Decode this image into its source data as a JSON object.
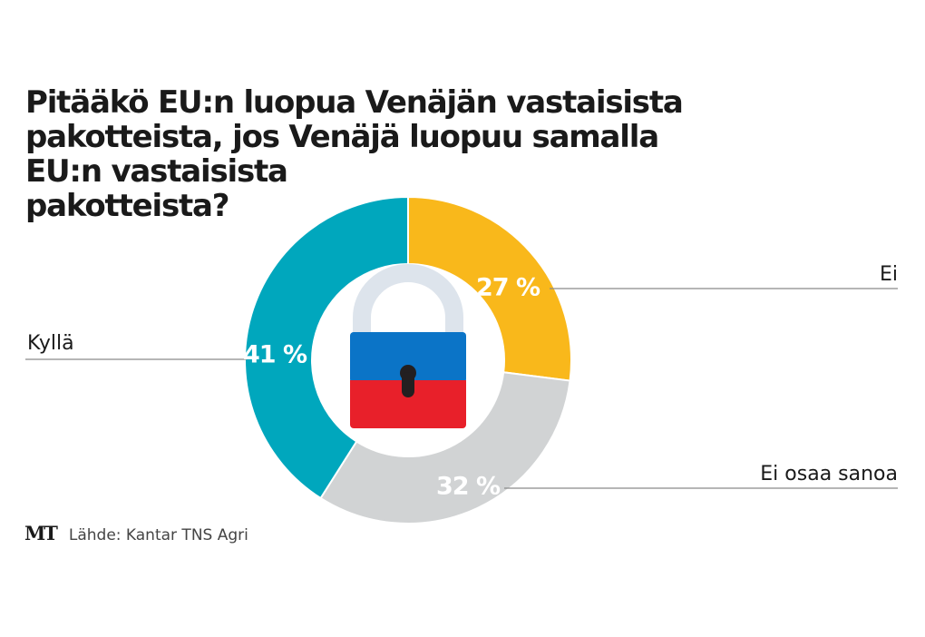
{
  "chart_data": {
    "type": "pie",
    "variant": "donut",
    "title": "Pitääkö EU:n luopua Venäjän vastaisista pakotteista, jos Venäjä luopuu samalla EU:n vastaisista pakotteista?",
    "title_lines": [
      "Pitääkö EU:n luopua Venäjän vastaisista",
      "pakotteista, jos Venäjä luopuu samalla",
      "EU:n vastaisista",
      "pakotteista?"
    ],
    "unit": "%",
    "slices": [
      {
        "label": "Ei",
        "value": 27,
        "value_label": "27 %",
        "color": "#f9b81b"
      },
      {
        "label": "Ei osaa sanoa",
        "value": 32,
        "value_label": "32 %",
        "color": "#d1d3d4"
      },
      {
        "label": "Kyllä",
        "value": 41,
        "value_label": "41 %",
        "color": "#00a7bd"
      }
    ],
    "start_angle": "top",
    "direction": "clockwise",
    "center_icon": "padlock-russian-flag-icon",
    "center_icon_colors": {
      "shackle": "#dde4ec",
      "top": "#0b74c7",
      "bottom": "#e8202a",
      "keyhole": "#231f20"
    }
  },
  "footer": {
    "logo": "MT",
    "source": "Lähde: Kantar TNS Agri"
  }
}
